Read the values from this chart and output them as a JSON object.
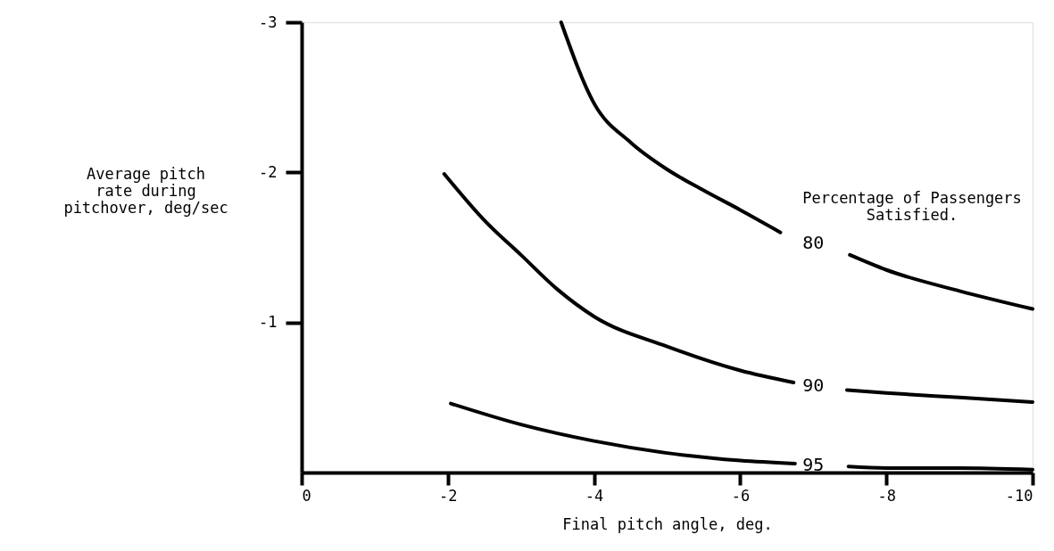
{
  "chart_data": {
    "type": "line",
    "xlabel": "Final pitch angle, deg.",
    "ylabel": "Average pitch\nrate during\npitchover, deg/sec",
    "annotations": [
      "Percentage of Passengers\nSatisfied."
    ],
    "series": [
      {
        "name": "80",
        "color": "#000000",
        "x": [
          -3.55,
          -4,
          -4.5,
          -5,
          -5.5,
          -6,
          -6.55,
          -7,
          -7.5,
          -8,
          -9,
          -10
        ],
        "values": [
          -3.0,
          -2.46,
          -2.2,
          -2.02,
          -1.88,
          -1.75,
          -1.6,
          null,
          -1.45,
          -1.35,
          -1.21,
          -1.09
        ]
      },
      {
        "name": "90",
        "color": "#000000",
        "x": [
          -1.95,
          -2.5,
          -3,
          -3.5,
          -4,
          -5,
          -6,
          -6.73,
          -7,
          -7.46,
          -8,
          -9,
          -10
        ],
        "values": [
          -1.99,
          -1.68,
          -1.45,
          -1.22,
          -1.04,
          -0.84,
          -0.68,
          -0.6,
          null,
          -0.55,
          -0.53,
          -0.5,
          -0.47
        ]
      },
      {
        "name": "95",
        "color": "#000000",
        "x": [
          -2.04,
          -3,
          -4,
          -5,
          -6,
          -6.75,
          -7,
          -7.48,
          -8,
          -9,
          -10
        ],
        "values": [
          -0.46,
          -0.32,
          -0.21,
          -0.13,
          -0.08,
          -0.06,
          null,
          -0.04,
          -0.03,
          -0.03,
          -0.02
        ]
      }
    ],
    "xlim": [
      0,
      -10
    ],
    "xticks": [
      0,
      -2,
      -4,
      -6,
      -8,
      -10
    ],
    "ylim": [
      0,
      -3
    ],
    "yticks": [
      -1,
      -2,
      -3
    ],
    "grid": false,
    "marker": "none",
    "line_style": "solid"
  }
}
